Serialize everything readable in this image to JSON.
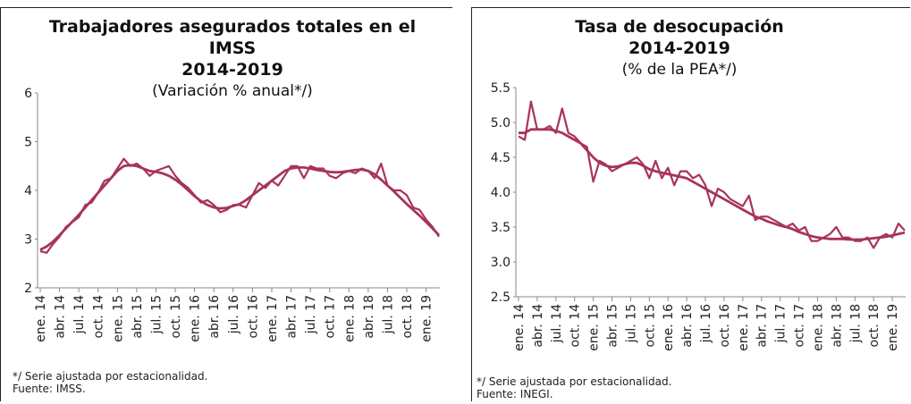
{
  "chart_data": [
    {
      "type": "line",
      "title": "Trabajadores asegurados totales en el IMSS",
      "subtitle": "2014-2019",
      "y_label": "(Variación % anual*/)",
      "notes": [
        "*/ Serie ajustada por estacionalidad.",
        "Fuente: IMSS."
      ],
      "categories": [
        "ene. 14",
        null,
        null,
        "abr. 14",
        null,
        null,
        "jul. 14",
        null,
        null,
        "oct. 14",
        null,
        null,
        "ene. 15",
        null,
        null,
        "abr. 15",
        null,
        null,
        "jul. 15",
        null,
        null,
        "oct. 15",
        null,
        null,
        "ene. 16",
        null,
        null,
        "abr. 16",
        null,
        null,
        "jul. 16",
        null,
        null,
        "oct. 16",
        null,
        null,
        "ene. 17",
        null,
        null,
        "abr. 17",
        null,
        null,
        "jul. 17",
        null,
        null,
        "oct. 17",
        null,
        null,
        "ene. 18",
        null,
        null,
        "abr. 18",
        null,
        null,
        "jul. 18",
        null,
        null,
        "oct. 18",
        null,
        null,
        "ene. 19",
        null,
        null
      ],
      "series": [
        {
          "color": "#a8335a",
          "values": [
            2.75,
            2.72,
            2.9,
            3.05,
            3.25,
            3.35,
            3.45,
            3.7,
            3.75,
            3.95,
            4.2,
            4.25,
            4.45,
            4.65,
            4.5,
            4.55,
            4.45,
            4.3,
            4.4,
            4.45,
            4.5,
            4.3,
            4.15,
            4.05,
            3.9,
            3.75,
            3.8,
            3.7,
            3.55,
            3.6,
            3.7,
            3.7,
            3.65,
            3.9,
            4.15,
            4.05,
            4.2,
            4.1,
            4.3,
            4.5,
            4.5,
            4.25,
            4.5,
            4.45,
            4.45,
            4.3,
            4.25,
            4.35,
            4.4,
            4.35,
            4.45,
            4.4,
            4.25,
            4.55,
            4.1,
            4.0,
            4.0,
            3.9,
            3.65,
            3.6,
            3.4,
            3.25,
            3.05
          ]
        },
        {
          "color": "#a8335a",
          "values": [
            2.78,
            2.85,
            2.95,
            3.08,
            3.22,
            3.36,
            3.5,
            3.65,
            3.8,
            3.95,
            4.1,
            4.25,
            4.4,
            4.5,
            4.52,
            4.5,
            4.45,
            4.4,
            4.38,
            4.35,
            4.3,
            4.22,
            4.12,
            4.0,
            3.88,
            3.78,
            3.7,
            3.65,
            3.63,
            3.64,
            3.68,
            3.72,
            3.8,
            3.9,
            4.0,
            4.1,
            4.2,
            4.3,
            4.4,
            4.45,
            4.47,
            4.47,
            4.45,
            4.42,
            4.4,
            4.38,
            4.37,
            4.38,
            4.4,
            4.42,
            4.43,
            4.4,
            4.33,
            4.22,
            4.1,
            3.98,
            3.85,
            3.72,
            3.6,
            3.48,
            3.35,
            3.22,
            3.08
          ]
        }
      ],
      "ylim": [
        2,
        6
      ],
      "yticks": [
        2,
        3,
        4,
        5,
        6
      ]
    },
    {
      "type": "line",
      "title": "Tasa de desocupación",
      "subtitle": "2014-2019",
      "y_label": "(% de la PEA*/)",
      "notes": [
        "*/ Serie ajustada por estacionalidad.",
        "Fuente: INEGI."
      ],
      "categories": [
        "ene. 14",
        null,
        null,
        "abr. 14",
        null,
        null,
        "jul. 14",
        null,
        null,
        "oct. 14",
        null,
        null,
        "ene. 15",
        null,
        null,
        "abr. 15",
        null,
        null,
        "jul. 15",
        null,
        null,
        "oct. 15",
        null,
        null,
        "ene. 16",
        null,
        null,
        "abr. 16",
        null,
        null,
        "jul. 16",
        null,
        null,
        "oct. 16",
        null,
        null,
        "ene. 17",
        null,
        null,
        "abr. 17",
        null,
        null,
        "jul. 17",
        null,
        null,
        "oct. 17",
        null,
        null,
        "ene. 18",
        null,
        null,
        "abr. 18",
        null,
        null,
        "jul. 18",
        null,
        null,
        "oct. 18",
        null,
        null,
        "ene. 19",
        null,
        null
      ],
      "series": [
        {
          "color": "#a8335a",
          "values": [
            4.8,
            4.75,
            5.3,
            4.9,
            4.9,
            4.95,
            4.85,
            5.2,
            4.85,
            4.8,
            4.7,
            4.65,
            4.15,
            4.45,
            4.4,
            4.3,
            4.35,
            4.4,
            4.45,
            4.5,
            4.4,
            4.2,
            4.45,
            4.2,
            4.35,
            4.1,
            4.3,
            4.3,
            4.2,
            4.25,
            4.1,
            3.8,
            4.05,
            4.0,
            3.9,
            3.85,
            3.8,
            3.95,
            3.6,
            3.65,
            3.65,
            3.6,
            3.55,
            3.5,
            3.55,
            3.45,
            3.5,
            3.3,
            3.3,
            3.35,
            3.4,
            3.5,
            3.35,
            3.35,
            3.3,
            3.3,
            3.35,
            3.2,
            3.35,
            3.4,
            3.35,
            3.55,
            3.45
          ]
        },
        {
          "color": "#a8335a",
          "values": [
            4.85,
            4.85,
            4.9,
            4.9,
            4.9,
            4.9,
            4.88,
            4.85,
            4.8,
            4.75,
            4.7,
            4.6,
            4.5,
            4.42,
            4.38,
            4.36,
            4.37,
            4.4,
            4.42,
            4.42,
            4.38,
            4.33,
            4.3,
            4.28,
            4.26,
            4.24,
            4.22,
            4.2,
            4.15,
            4.1,
            4.05,
            4.0,
            3.95,
            3.9,
            3.85,
            3.8,
            3.75,
            3.7,
            3.65,
            3.62,
            3.58,
            3.55,
            3.52,
            3.5,
            3.47,
            3.43,
            3.4,
            3.37,
            3.35,
            3.34,
            3.33,
            3.33,
            3.33,
            3.32,
            3.32,
            3.32,
            3.33,
            3.34,
            3.35,
            3.36,
            3.38,
            3.4,
            3.42
          ]
        }
      ],
      "ylim": [
        2.5,
        5.5
      ],
      "yticks": [
        {
          "value": 2.5,
          "label": "2.5"
        },
        {
          "value": 3,
          "label": "3.0"
        },
        {
          "value": 3.5,
          "label": "3.5"
        },
        {
          "value": 4,
          "label": "4.0"
        },
        {
          "value": 4.5,
          "label": "4.5"
        },
        {
          "value": 5,
          "label": "5.0"
        },
        {
          "value": 5.5,
          "label": "5.5"
        }
      ]
    }
  ]
}
